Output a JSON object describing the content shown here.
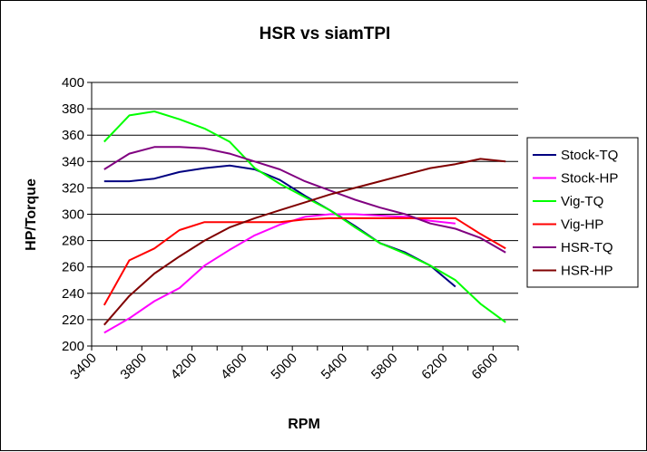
{
  "chart_data": {
    "type": "line",
    "title": "HSR vs siamTPI",
    "xlabel": "RPM",
    "ylabel": "HP/Torque",
    "xlim": [
      3400,
      6800
    ],
    "ylim": [
      200,
      400
    ],
    "x_ticks": [
      "3400",
      "3800",
      "4200",
      "4600",
      "5000",
      "5400",
      "5800",
      "6200",
      "6600"
    ],
    "y_ticks": [
      "200",
      "220",
      "240",
      "260",
      "280",
      "300",
      "320",
      "340",
      "360",
      "380",
      "400"
    ],
    "grid": "horizontal major gridlines",
    "legend_position": "right",
    "series": [
      {
        "name": "Stock-TQ",
        "color": "#000080",
        "points": [
          [
            3500,
            325
          ],
          [
            3700,
            325
          ],
          [
            3900,
            327
          ],
          [
            4100,
            332
          ],
          [
            4300,
            335
          ],
          [
            4500,
            337
          ],
          [
            4700,
            334
          ],
          [
            4900,
            326
          ],
          [
            5100,
            314
          ],
          [
            5300,
            303
          ],
          [
            5500,
            291
          ],
          [
            5700,
            278
          ],
          [
            5900,
            271
          ],
          [
            6100,
            261
          ],
          [
            6300,
            245
          ]
        ]
      },
      {
        "name": "Stock-HP",
        "color": "#ff00ff",
        "points": [
          [
            3500,
            210
          ],
          [
            3700,
            221
          ],
          [
            3900,
            234
          ],
          [
            4100,
            244
          ],
          [
            4300,
            261
          ],
          [
            4500,
            273
          ],
          [
            4700,
            284
          ],
          [
            4900,
            292
          ],
          [
            5100,
            298
          ],
          [
            5300,
            300
          ],
          [
            5500,
            300
          ],
          [
            5700,
            299
          ],
          [
            5900,
            298
          ],
          [
            6100,
            295
          ],
          [
            6300,
            293
          ]
        ]
      },
      {
        "name": "Vig-TQ",
        "color": "#00ff00",
        "points": [
          [
            3500,
            355
          ],
          [
            3700,
            375
          ],
          [
            3900,
            378
          ],
          [
            4100,
            372
          ],
          [
            4300,
            365
          ],
          [
            4500,
            355
          ],
          [
            4700,
            335
          ],
          [
            4900,
            323
          ],
          [
            5100,
            313
          ],
          [
            5300,
            303
          ],
          [
            5500,
            290
          ],
          [
            5700,
            278
          ],
          [
            5900,
            270
          ],
          [
            6100,
            261
          ],
          [
            6300,
            250
          ],
          [
            6500,
            232
          ],
          [
            6700,
            218
          ]
        ]
      },
      {
        "name": "Vig-HP",
        "color": "#ff0000",
        "points": [
          [
            3500,
            231
          ],
          [
            3700,
            265
          ],
          [
            3900,
            274
          ],
          [
            4100,
            288
          ],
          [
            4300,
            294
          ],
          [
            4500,
            294
          ],
          [
            4700,
            294
          ],
          [
            4900,
            294
          ],
          [
            5100,
            296
          ],
          [
            5300,
            297
          ],
          [
            5500,
            297
          ],
          [
            5700,
            297
          ],
          [
            5900,
            297
          ],
          [
            6100,
            297
          ],
          [
            6300,
            297
          ],
          [
            6500,
            285
          ],
          [
            6700,
            274
          ]
        ]
      },
      {
        "name": "HSR-TQ",
        "color": "#800080",
        "points": [
          [
            3500,
            334
          ],
          [
            3700,
            346
          ],
          [
            3900,
            351
          ],
          [
            4100,
            351
          ],
          [
            4300,
            350
          ],
          [
            4500,
            346
          ],
          [
            4700,
            340
          ],
          [
            4900,
            334
          ],
          [
            5100,
            325
          ],
          [
            5300,
            318
          ],
          [
            5500,
            311
          ],
          [
            5700,
            305
          ],
          [
            5900,
            300
          ],
          [
            6100,
            293
          ],
          [
            6300,
            289
          ],
          [
            6500,
            282
          ],
          [
            6700,
            271
          ]
        ]
      },
      {
        "name": "HSR-HP",
        "color": "#800000",
        "points": [
          [
            3500,
            216
          ],
          [
            3700,
            238
          ],
          [
            3900,
            255
          ],
          [
            4100,
            268
          ],
          [
            4300,
            280
          ],
          [
            4500,
            290
          ],
          [
            4700,
            297
          ],
          [
            4900,
            303
          ],
          [
            5100,
            309
          ],
          [
            5300,
            315
          ],
          [
            5500,
            320
          ],
          [
            5700,
            325
          ],
          [
            5900,
            330
          ],
          [
            6100,
            335
          ],
          [
            6300,
            338
          ],
          [
            6500,
            342
          ],
          [
            6700,
            340
          ]
        ]
      }
    ]
  }
}
